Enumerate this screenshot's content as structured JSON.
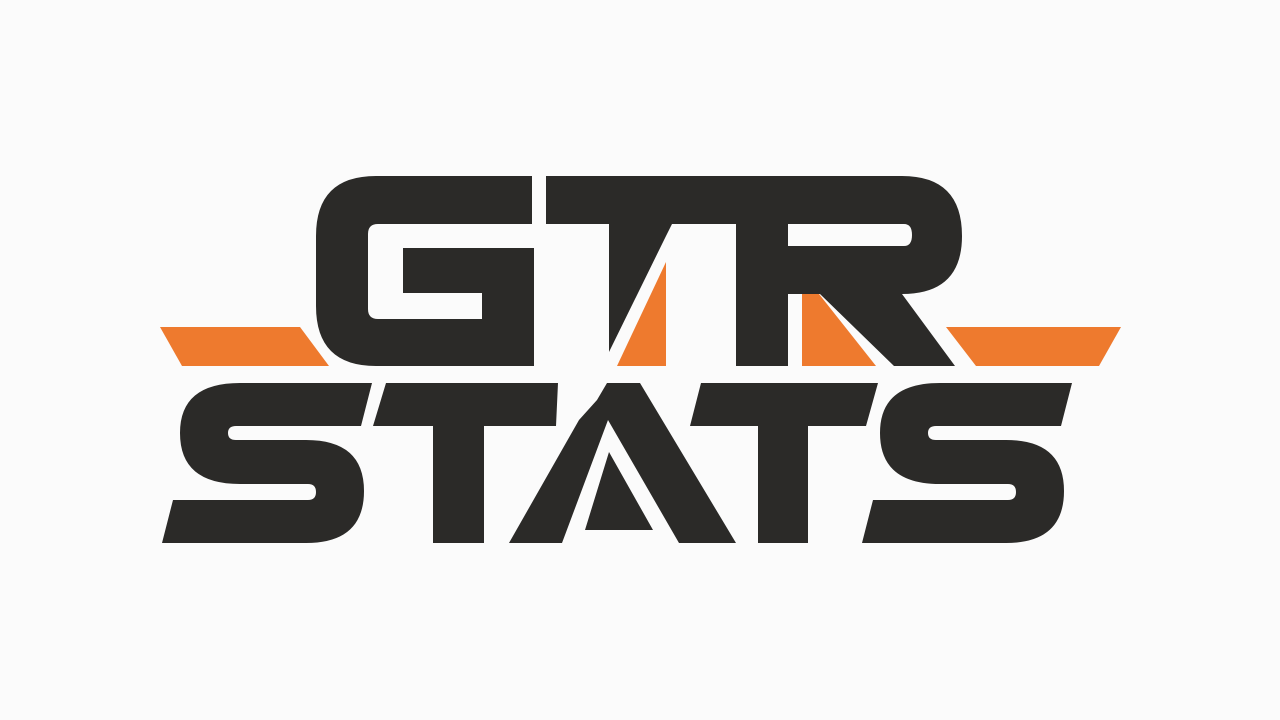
{
  "logo": {
    "line1": "GTR",
    "line2": "STATS",
    "colors": {
      "background": "#fbfbfb",
      "ink": "#2b2a28",
      "accent": "#ee7a2e"
    }
  }
}
